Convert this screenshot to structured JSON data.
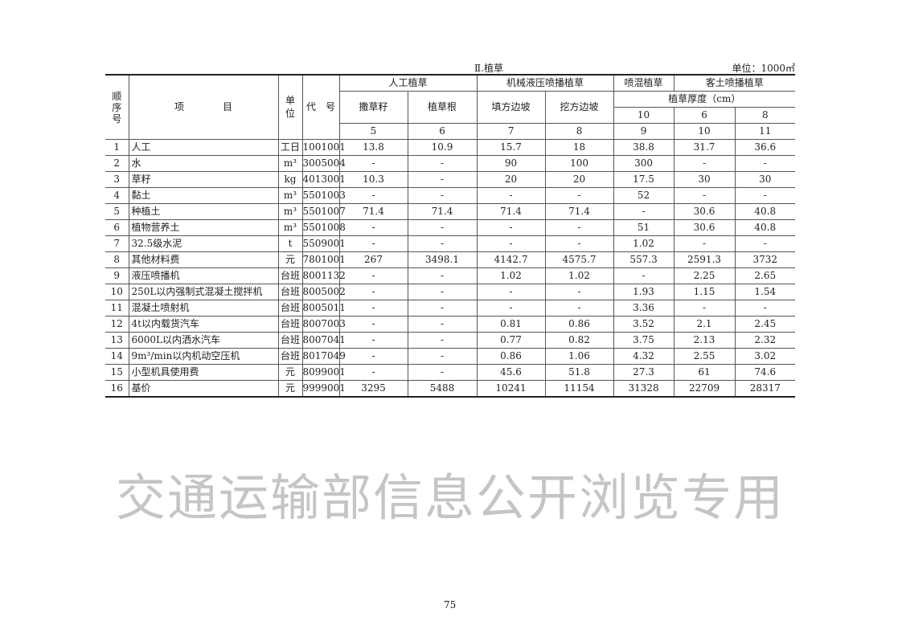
{
  "title": "Ⅱ.植草",
  "unit_note": "单位：1000㎡",
  "header": {
    "seq": "顺序号",
    "item": "项　　　　目",
    "unit": "单位",
    "code": "代　号",
    "group_manual": "人工植草",
    "group_hydro": "机械液压喷播植草",
    "group_spray": "喷混植草",
    "group_soil": "客土喷播植草",
    "sub_seed": "撒草籽",
    "sub_root": "植草根",
    "sub_fill": "填方边坡",
    "sub_cut": "挖方边坡",
    "thickness": "植草厚度（cm）",
    "thick_values": [
      "10",
      "6",
      "8"
    ],
    "col_numbers": [
      "5",
      "6",
      "7",
      "8",
      "9",
      "10",
      "11"
    ]
  },
  "rows": [
    {
      "no": "1",
      "item": "人工",
      "unit": "工日",
      "code": "1001001",
      "v": [
        "13.8",
        "10.9",
        "15.7",
        "18",
        "38.8",
        "31.7",
        "36.6"
      ]
    },
    {
      "no": "2",
      "item": "水",
      "unit": "m³",
      "code": "3005004",
      "v": [
        "-",
        "-",
        "90",
        "100",
        "300",
        "-",
        "-"
      ]
    },
    {
      "no": "3",
      "item": "草籽",
      "unit": "kg",
      "code": "4013001",
      "v": [
        "10.3",
        "-",
        "20",
        "20",
        "17.5",
        "30",
        "30"
      ]
    },
    {
      "no": "4",
      "item": "黏土",
      "unit": "m³",
      "code": "5501003",
      "v": [
        "-",
        "-",
        "-",
        "-",
        "52",
        "-",
        "-"
      ]
    },
    {
      "no": "5",
      "item": "种植土",
      "unit": "m³",
      "code": "5501007",
      "v": [
        "71.4",
        "71.4",
        "71.4",
        "71.4",
        "-",
        "30.6",
        "40.8"
      ]
    },
    {
      "no": "6",
      "item": "植物营养土",
      "unit": "m³",
      "code": "5501008",
      "v": [
        "-",
        "-",
        "-",
        "-",
        "51",
        "30.6",
        "40.8"
      ]
    },
    {
      "no": "7",
      "item": "32.5级水泥",
      "unit": "t",
      "code": "5509001",
      "v": [
        "-",
        "-",
        "-",
        "-",
        "1.02",
        "-",
        "-"
      ]
    },
    {
      "no": "8",
      "item": "其他材料费",
      "unit": "元",
      "code": "7801001",
      "v": [
        "267",
        "3498.1",
        "4142.7",
        "4575.7",
        "557.3",
        "2591.3",
        "3732"
      ]
    },
    {
      "no": "9",
      "item": "液压喷播机",
      "unit": "台班",
      "code": "8001132",
      "v": [
        "-",
        "-",
        "1.02",
        "1.02",
        "-",
        "2.25",
        "2.65"
      ]
    },
    {
      "no": "10",
      "item": "250L以内强制式混凝土搅拌机",
      "unit": "台班",
      "code": "8005002",
      "v": [
        "-",
        "-",
        "-",
        "-",
        "1.93",
        "1.15",
        "1.54"
      ]
    },
    {
      "no": "11",
      "item": "混凝土喷射机",
      "unit": "台班",
      "code": "8005011",
      "v": [
        "-",
        "-",
        "-",
        "-",
        "3.36",
        "-",
        "-"
      ]
    },
    {
      "no": "12",
      "item": "4t以内载货汽车",
      "unit": "台班",
      "code": "8007003",
      "v": [
        "-",
        "-",
        "0.81",
        "0.86",
        "3.52",
        "2.1",
        "2.45"
      ]
    },
    {
      "no": "13",
      "item": "6000L以内洒水汽车",
      "unit": "台班",
      "code": "8007041",
      "v": [
        "-",
        "-",
        "0.77",
        "0.82",
        "3.75",
        "2.13",
        "2.32"
      ]
    },
    {
      "no": "14",
      "item": "9m³/min以内机动空压机",
      "unit": "台班",
      "code": "8017049",
      "v": [
        "-",
        "-",
        "0.86",
        "1.06",
        "4.32",
        "2.55",
        "3.02"
      ]
    },
    {
      "no": "15",
      "item": "小型机具使用费",
      "unit": "元",
      "code": "8099001",
      "v": [
        "-",
        "-",
        "45.6",
        "51.8",
        "27.3",
        "61",
        "74.6"
      ]
    },
    {
      "no": "16",
      "item": "基价",
      "unit": "元",
      "code": "9999001",
      "v": [
        "3295",
        "5488",
        "10241",
        "11154",
        "31328",
        "22709",
        "28317"
      ]
    }
  ],
  "page_number": "75",
  "watermark": "交通运输部信息公开浏览专用"
}
